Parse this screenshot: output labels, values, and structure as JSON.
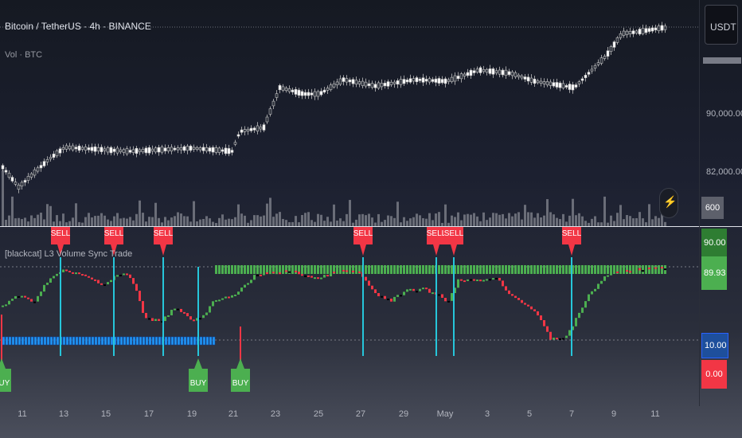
{
  "symbol": {
    "title": "Bitcoin / TetherUS · 4h · BINANCE",
    "volume_label": "Vol · BTC",
    "currency_button": "USDT"
  },
  "indicator": {
    "name": "[blackcat] L3 Volume Sync Trade",
    "sell_label": "SELL",
    "buy_label": "BUY",
    "upper_value": "90.00",
    "current_value": "89.93",
    "lower_value": "10.00",
    "zero_value": "0.00"
  },
  "price_axis": {
    "ticks": [
      "90,000.00",
      "82,000.00"
    ],
    "volume_tag": "600"
  },
  "time_axis": {
    "labels": [
      "11",
      "13",
      "15",
      "17",
      "19",
      "21",
      "23",
      "25",
      "27",
      "29",
      "May",
      "3",
      "5",
      "7",
      "9",
      "11"
    ]
  },
  "colors": {
    "background": "#131722",
    "up": "#ffffff",
    "down": "#2a2e39",
    "wick": "#c0c0c0",
    "volume": "#8a8d96",
    "sell": "#f23645",
    "buy": "#4caf50",
    "signal_line": "#26c6da",
    "upper_band": "#4caf50",
    "lower_band": "#2196f3"
  },
  "icons": {
    "alert": "lightning-alert-icon"
  }
}
